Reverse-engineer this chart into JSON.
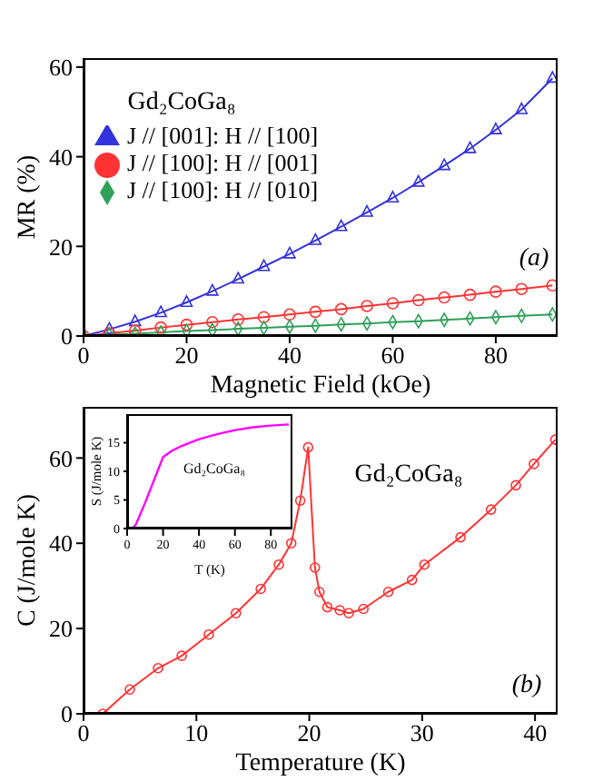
{
  "chart_data": [
    {
      "type": "line",
      "xlabel": "Magnetic Field (kOe)",
      "ylabel": "MR (%)",
      "xlim": [
        0,
        92
      ],
      "xticks": [
        0,
        20,
        40,
        60,
        80
      ],
      "ylim": [
        0,
        62
      ],
      "yticks": [
        0,
        20,
        40,
        60
      ],
      "legend": "top left",
      "line_style": "solid",
      "annotations": [
        "Gd₂CoGa₈",
        "(a)"
      ],
      "series": [
        {
          "name": "J // [001]: H // [100]",
          "color": "#3333dd",
          "marker": "triangle",
          "x": [
            0,
            5,
            10,
            15,
            20,
            25,
            30,
            35,
            40,
            45,
            50,
            55,
            60,
            65,
            70,
            75,
            80,
            85,
            91
          ],
          "values": [
            0,
            1.5,
            3.2,
            5.2,
            7.5,
            10,
            12.7,
            15.5,
            18.3,
            21.3,
            24.4,
            27.6,
            30.8,
            34.3,
            38,
            41.8,
            46,
            50.5,
            57.5
          ]
        },
        {
          "name": "J // [100]: H // [001]",
          "color": "#ff3333",
          "marker": "circle",
          "x": [
            0,
            5,
            10,
            15,
            20,
            25,
            30,
            35,
            40,
            45,
            50,
            55,
            60,
            65,
            70,
            75,
            80,
            85,
            91
          ],
          "values": [
            0,
            0.6,
            1.2,
            1.9,
            2.5,
            3.1,
            3.7,
            4.2,
            4.8,
            5.4,
            6,
            6.7,
            7.3,
            8,
            8.6,
            9.2,
            9.9,
            10.5,
            11.3
          ]
        },
        {
          "name": "J // [100]: H // [010]",
          "color": "#2ea05a",
          "marker": "diamond",
          "x": [
            0,
            5,
            10,
            15,
            20,
            25,
            30,
            35,
            40,
            45,
            50,
            55,
            60,
            65,
            70,
            75,
            80,
            85,
            91
          ],
          "values": [
            0,
            0.3,
            0.5,
            0.8,
            1.1,
            1.3,
            1.6,
            1.8,
            2.1,
            2.3,
            2.6,
            2.8,
            3.1,
            3.3,
            3.6,
            3.9,
            4.2,
            4.5,
            4.8
          ]
        }
      ]
    },
    {
      "type": "line",
      "xlabel": "Temperature (K)",
      "ylabel": "C (J/mole K)",
      "xlim": [
        0,
        42
      ],
      "xticks": [
        0,
        10,
        20,
        30,
        40
      ],
      "ylim": [
        0,
        72
      ],
      "yticks": [
        0,
        20,
        40,
        60
      ],
      "marker": "circle",
      "line_style": "solid",
      "annotations": [
        "Gd₂CoGa₈",
        "(b)"
      ],
      "series": [
        {
          "color": "#ff3333",
          "x": [
            1.7,
            4.1,
            6.6,
            8.7,
            11.1,
            13.5,
            15.7,
            17.3,
            18.4,
            19.2,
            19.9,
            20.5,
            20.9,
            21.6,
            22.7,
            23.5,
            24.8,
            27,
            29.1,
            30.2,
            33.4,
            36.1,
            38.3,
            39.9,
            41.8
          ],
          "values": [
            0,
            5.7,
            10.7,
            13.6,
            18.6,
            23.6,
            29.3,
            35,
            40,
            50,
            62.5,
            34.3,
            28.6,
            25,
            24.3,
            23.6,
            24.6,
            28.6,
            31.4,
            35,
            41.4,
            47.9,
            53.6,
            58.6,
            64.3
          ]
        }
      ]
    },
    {
      "type": "line",
      "xlabel": "T (K)",
      "ylabel": "S (J/mole K)",
      "xlim": [
        0,
        92
      ],
      "xticks": [
        0,
        20,
        40,
        60,
        80
      ],
      "ylim": [
        0,
        20
      ],
      "yticks": [
        0,
        5,
        10,
        15
      ],
      "marker": "none",
      "line_style": "solid",
      "annotations": [
        "Gd₂CoGa₈"
      ],
      "series": [
        {
          "color": "#ff00ff",
          "x": [
            0,
            3,
            5,
            10,
            15,
            20,
            25,
            30,
            40,
            50,
            60,
            70,
            80,
            90
          ],
          "values": [
            0,
            0,
            0.8,
            4.5,
            8.5,
            12.5,
            13.6,
            14.4,
            15.6,
            16.5,
            17.2,
            17.7,
            18,
            18.2
          ]
        }
      ]
    }
  ]
}
